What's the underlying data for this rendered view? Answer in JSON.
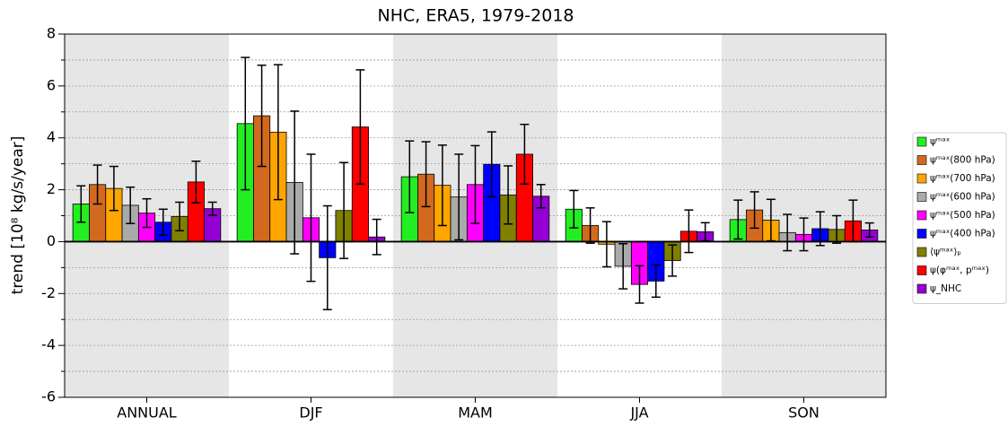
{
  "chart_data": {
    "type": "bar",
    "title": "NHC, ERA5, 1979-2018",
    "y_label": "trend [10⁸ kg/s/year]",
    "categories": [
      "ANNUAL",
      "DJF",
      "MAM",
      "JJA",
      "SON"
    ],
    "ylim": [
      -6,
      8
    ],
    "yticks": [
      -6,
      -4,
      -2,
      0,
      2,
      4,
      6,
      8
    ],
    "minor_yticks": [
      -5,
      -3,
      -1,
      1,
      3,
      5,
      7
    ],
    "grid": true,
    "legend": "right",
    "series": [
      {
        "name": "ψᵐᵃˣ",
        "color": "#22ee22",
        "values": [
          1.45,
          4.55,
          2.5,
          1.25,
          0.85
        ],
        "errors": [
          0.7,
          2.55,
          1.38,
          0.72,
          0.75
        ]
      },
      {
        "name": "ψᵐᵃˣ(800 hPa)",
        "color": "#d2691e",
        "values": [
          2.2,
          4.85,
          2.6,
          0.62,
          1.22
        ],
        "errors": [
          0.75,
          1.95,
          1.25,
          0.68,
          0.7
        ]
      },
      {
        "name": "ψᵐᵃˣ(700 hPa)",
        "color": "#ffa500",
        "values": [
          2.05,
          4.22,
          2.17,
          -0.1,
          0.83
        ],
        "errors": [
          0.85,
          2.6,
          1.55,
          0.87,
          0.8
        ]
      },
      {
        "name": "ψᵐᵃˣ(600 hPa)",
        "color": "#aaaaaa",
        "values": [
          1.4,
          2.28,
          1.72,
          -0.95,
          0.35
        ],
        "errors": [
          0.7,
          2.75,
          1.65,
          0.87,
          0.7
        ]
      },
      {
        "name": "ψᵐᵃˣ(500 hPa)",
        "color": "#ff00ff",
        "values": [
          1.1,
          0.92,
          2.2,
          -1.65,
          0.28
        ],
        "errors": [
          0.55,
          2.45,
          1.5,
          0.72,
          0.63
        ]
      },
      {
        "name": "ψᵐᵃˣ(400 hPa)",
        "color": "#0000ff",
        "values": [
          0.75,
          -0.62,
          2.98,
          -1.52,
          0.5
        ],
        "errors": [
          0.5,
          2.0,
          1.25,
          0.62,
          0.65
        ]
      },
      {
        "name": "⟨ψᵐᵃˣ⟩ₚ",
        "color": "#808000",
        "values": [
          0.97,
          1.2,
          1.8,
          -0.73,
          0.47
        ],
        "errors": [
          0.55,
          1.85,
          1.12,
          0.6,
          0.53
        ]
      },
      {
        "name": "ψ(φᵐᵃˣ, pᵐᵃˣ)",
        "color": "#ff0000",
        "values": [
          2.3,
          4.42,
          3.37,
          0.4,
          0.8
        ],
        "errors": [
          0.8,
          2.2,
          1.15,
          0.82,
          0.8
        ]
      },
      {
        "name": "ψ_NHC",
        "color": "#9400d3",
        "values": [
          1.27,
          0.18,
          1.75,
          0.38,
          0.45
        ],
        "errors": [
          0.25,
          0.68,
          0.45,
          0.35,
          0.27
        ]
      }
    ]
  }
}
